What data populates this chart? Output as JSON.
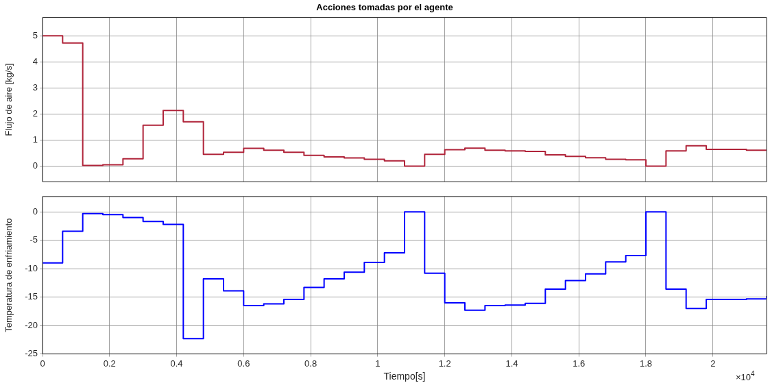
{
  "chart_data": [
    {
      "type": "step",
      "title": "Acciones tomadas por el agente",
      "ylabel": "Flujo de aire [kg/s]",
      "x": [
        0,
        0.06,
        0.12,
        0.18,
        0.24,
        0.3,
        0.36,
        0.42,
        0.48,
        0.54,
        0.6,
        0.66,
        0.72,
        0.78,
        0.84,
        0.9,
        0.96,
        1.02,
        1.08,
        1.14,
        1.2,
        1.26,
        1.32,
        1.38,
        1.44,
        1.5,
        1.56,
        1.62,
        1.68,
        1.74,
        1.8,
        1.86,
        1.92,
        1.98,
        2.04,
        2.1,
        2.16
      ],
      "series": [
        {
          "color": "#b0243a",
          "values": [
            5.0,
            4.72,
            0.02,
            0.05,
            0.28,
            1.57,
            2.13,
            1.7,
            0.45,
            0.53,
            0.68,
            0.61,
            0.53,
            0.41,
            0.35,
            0.31,
            0.26,
            0.2,
            0.0,
            0.45,
            0.63,
            0.69,
            0.61,
            0.58,
            0.56,
            0.43,
            0.37,
            0.32,
            0.26,
            0.24,
            0.0,
            0.58,
            0.78,
            0.64,
            0.64,
            0.61,
            0.61
          ]
        }
      ],
      "xlim": [
        0,
        2.16
      ],
      "xticks": [
        {
          "value": 0,
          "label": null
        },
        {
          "value": 0.2,
          "label": null
        },
        {
          "value": 0.4,
          "label": null
        },
        {
          "value": 0.6,
          "label": null
        },
        {
          "value": 0.8,
          "label": null
        },
        {
          "value": 1,
          "label": null
        },
        {
          "value": 1.2,
          "label": null
        },
        {
          "value": 1.4,
          "label": null
        },
        {
          "value": 1.6,
          "label": null
        },
        {
          "value": 1.8,
          "label": null
        },
        {
          "value": 2,
          "label": null
        }
      ],
      "ylim": [
        -0.6,
        5.7
      ],
      "yticks": [
        0,
        1,
        2,
        3,
        4,
        5
      ],
      "grid": true,
      "legend": false,
      "tick_labels": "y"
    },
    {
      "type": "step",
      "xlabel": "Tiempo[s]",
      "ylabel": "Temperatura de enfriamiento",
      "annotations": [
        "×10$^{4}$"
      ],
      "x": [
        0,
        0.06,
        0.12,
        0.18,
        0.24,
        0.3,
        0.36,
        0.42,
        0.48,
        0.54,
        0.6,
        0.66,
        0.72,
        0.78,
        0.84,
        0.9,
        0.96,
        1.02,
        1.08,
        1.14,
        1.2,
        1.26,
        1.32,
        1.38,
        1.44,
        1.5,
        1.56,
        1.62,
        1.68,
        1.74,
        1.8,
        1.86,
        1.92,
        1.98,
        2.04,
        2.1,
        2.16
      ],
      "series": [
        {
          "color": "#0000ff",
          "values": [
            -9.0,
            -3.4,
            -0.3,
            -0.5,
            -1.0,
            -1.7,
            -2.2,
            -22.3,
            -11.8,
            -13.9,
            -16.5,
            -16.2,
            -15.4,
            -13.3,
            -11.8,
            -10.6,
            -8.9,
            -7.2,
            0.0,
            -10.8,
            -16.0,
            -17.3,
            -16.5,
            -16.4,
            -16.1,
            -13.6,
            -12.1,
            -10.9,
            -8.8,
            -7.7,
            0.0,
            -13.6,
            -17.0,
            -15.4,
            -15.4,
            -15.3,
            -14.8
          ]
        }
      ],
      "xlim": [
        0,
        2.16
      ],
      "xticks": [
        0,
        0.2,
        0.4,
        0.6,
        0.8,
        1,
        1.2,
        1.4,
        1.6,
        1.8,
        2
      ],
      "ylim": [
        -25,
        2.7
      ],
      "yticks": [
        -25,
        -20,
        -15,
        -10,
        -5,
        0
      ],
      "grid": true,
      "legend": false
    }
  ]
}
